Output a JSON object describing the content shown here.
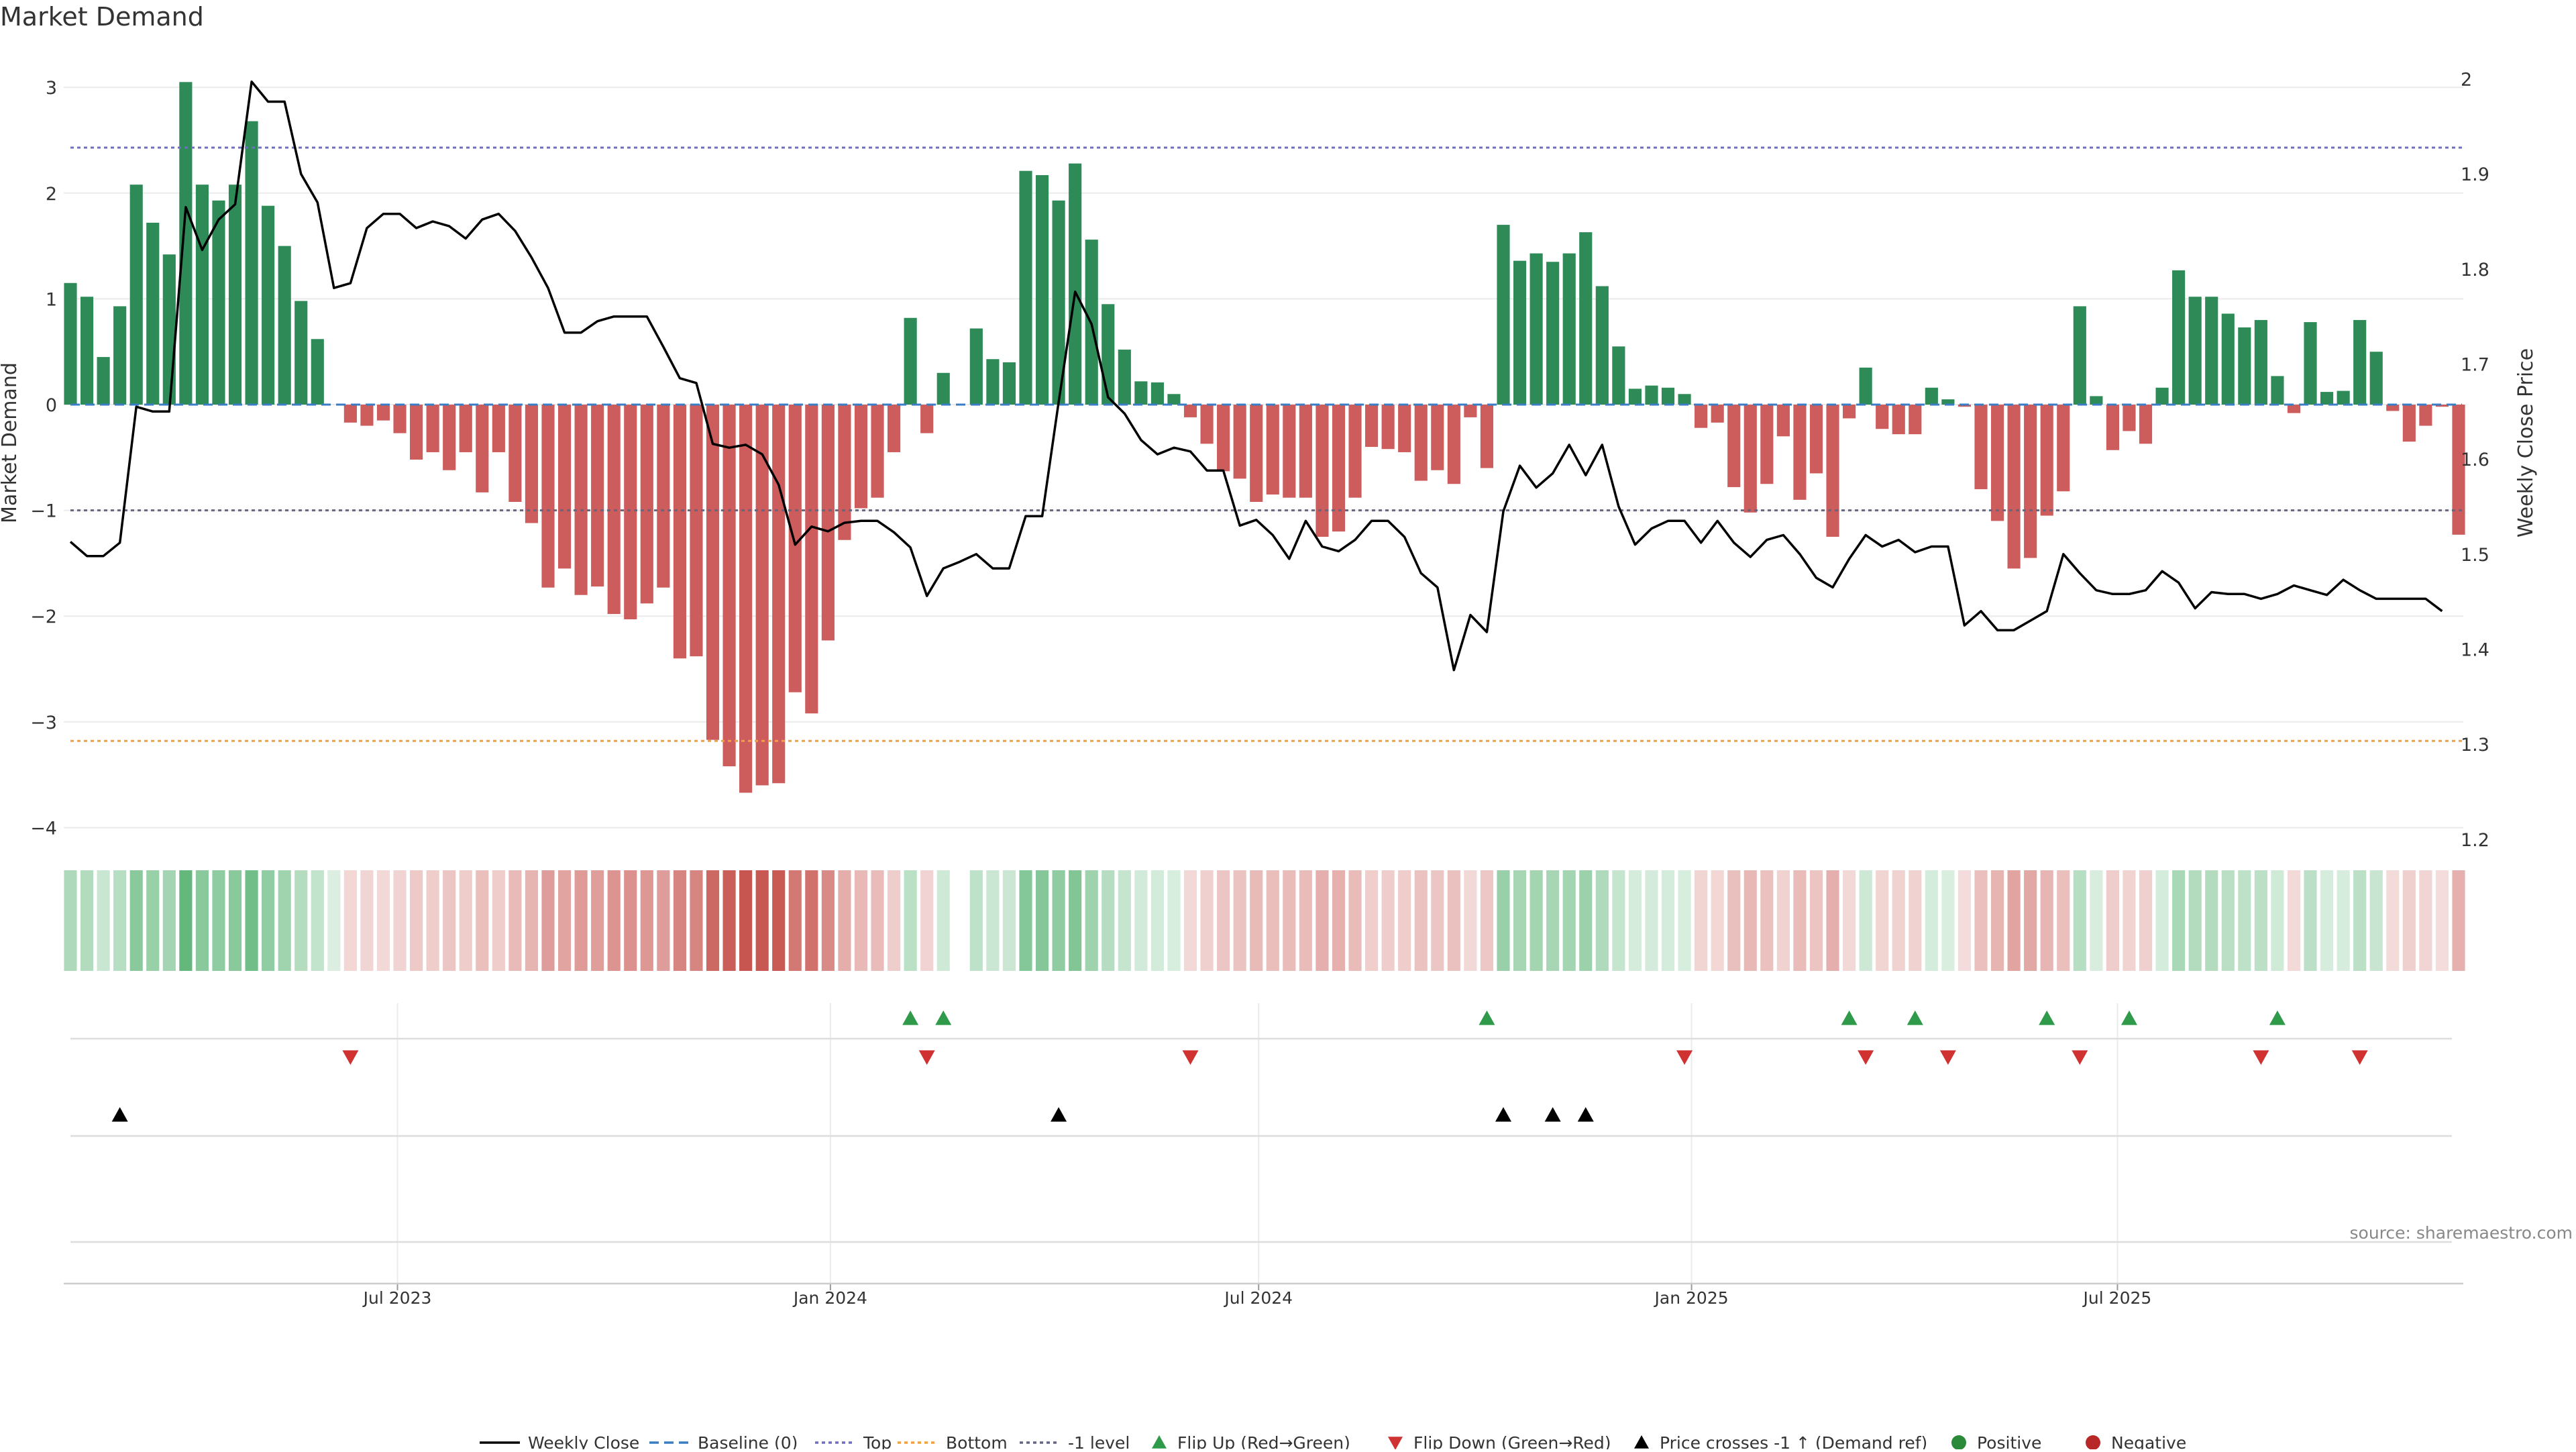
{
  "chart_data": {
    "type": "bar",
    "title": "Market Demand",
    "ylabel": "Market Demand",
    "y2label": "Weekly Close Price",
    "ylim": [
      -4.2,
      3.35
    ],
    "y2lim": [
      1.19,
      2.03
    ],
    "yticks": [
      3,
      2,
      1,
      0,
      -1,
      -2,
      -3,
      -4
    ],
    "y2ticks": [
      2,
      1.9,
      1.8,
      1.7,
      1.6,
      1.5,
      1.4,
      1.3,
      1.2
    ],
    "x_start": "2023-02-12",
    "week_days": 7,
    "x_tick_labels": [
      {
        "date": "2023-07-01",
        "label": "Jul 2023"
      },
      {
        "date": "2024-01-01",
        "label": "Jan 2024"
      },
      {
        "date": "2024-07-01",
        "label": "Jul 2024"
      },
      {
        "date": "2025-01-01",
        "label": "Jan 2025"
      },
      {
        "date": "2025-07-01",
        "label": "Jul 2025"
      }
    ],
    "reference_lines": [
      {
        "name": "Baseline (0)",
        "value": 0,
        "color": "#3b7dc4"
      },
      {
        "name": "Top",
        "value": 2.43,
        "color": "#6e6ec8"
      },
      {
        "name": "Bottom",
        "value": -3.18,
        "color": "#f0a040"
      },
      {
        "name": "-1 level",
        "value": -1,
        "color": "#666680"
      }
    ],
    "demand": [
      1.15,
      1.02,
      0.45,
      0.93,
      2.08,
      1.72,
      1.42,
      3.05,
      2.08,
      1.93,
      2.08,
      2.68,
      1.88,
      1.5,
      0.98,
      0.62,
      0,
      -0.17,
      -0.2,
      -0.15,
      -0.27,
      -0.52,
      -0.45,
      -0.62,
      -0.45,
      -0.83,
      -0.45,
      -0.92,
      -1.12,
      -1.73,
      -1.55,
      -1.8,
      -1.72,
      -1.98,
      -2.03,
      -1.88,
      -1.73,
      -2.4,
      -2.38,
      -3.17,
      -3.42,
      -3.67,
      -3.6,
      -3.58,
      -2.72,
      -2.92,
      -2.23,
      -1.28,
      -0.98,
      -0.88,
      -0.45,
      0.82,
      -0.27,
      0.3,
      null,
      0.72,
      0.43,
      0.4,
      2.21,
      2.17,
      1.93,
      2.28,
      1.56,
      0.95,
      0.52,
      0.22,
      0.21,
      0.1,
      -0.12,
      -0.37,
      -0.63,
      -0.7,
      -0.92,
      -0.85,
      -0.88,
      -0.88,
      -1.25,
      -1.2,
      -0.88,
      -0.4,
      -0.42,
      -0.45,
      -0.72,
      -0.62,
      -0.75,
      -0.12,
      -0.6,
      1.7,
      1.36,
      1.43,
      1.35,
      1.43,
      1.63,
      1.12,
      0.55,
      0.15,
      0.18,
      0.16,
      0.1,
      -0.22,
      -0.17,
      -0.78,
      -1.02,
      -0.75,
      -0.3,
      -0.9,
      -0.65,
      -1.25,
      -0.13,
      0.35,
      -0.23,
      -0.28,
      -0.28,
      0.16,
      0.05,
      -0.02,
      -0.8,
      -1.1,
      -1.55,
      -1.45,
      -1.05,
      -0.82,
      0.93,
      0.08,
      -0.43,
      -0.25,
      -0.37,
      0.16,
      1.27,
      1.02,
      1.02,
      0.86,
      0.73,
      0.8,
      0.27,
      -0.08,
      0.78,
      0.12,
      0.13,
      0.8,
      0.5,
      -0.06,
      -0.35,
      -0.2,
      -0.02,
      -1.23
    ],
    "weekly_close": [
      1.513,
      1.498,
      1.498,
      1.512,
      1.655,
      1.65,
      1.65,
      1.865,
      1.82,
      1.852,
      1.868,
      1.997,
      1.976,
      1.976,
      1.9,
      1.87,
      1.78,
      1.785,
      1.843,
      1.858,
      1.858,
      1.843,
      1.85,
      1.845,
      1.832,
      1.852,
      1.858,
      1.84,
      1.812,
      1.78,
      1.733,
      1.733,
      1.745,
      1.75,
      1.75,
      1.75,
      1.718,
      1.685,
      1.68,
      1.616,
      1.612,
      1.615,
      1.605,
      1.573,
      1.51,
      1.529,
      1.524,
      1.533,
      1.535,
      1.535,
      1.523,
      1.507,
      1.456,
      1.485,
      1.492,
      1.5,
      1.485,
      1.485,
      1.54,
      1.54,
      1.66,
      1.776,
      1.742,
      1.665,
      1.648,
      1.62,
      1.605,
      1.612,
      1.608,
      1.588,
      1.588,
      1.53,
      1.536,
      1.52,
      1.495,
      1.535,
      1.508,
      1.503,
      1.515,
      1.535,
      1.535,
      1.518,
      1.48,
      1.465,
      1.378,
      1.436,
      1.418,
      1.545,
      1.593,
      1.57,
      1.585,
      1.615,
      1.583,
      1.615,
      1.55,
      1.51,
      1.527,
      1.535,
      1.535,
      1.512,
      1.535,
      1.512,
      1.497,
      1.515,
      1.52,
      1.5,
      1.475,
      1.465,
      1.495,
      1.52,
      1.508,
      1.515,
      1.502,
      1.508,
      1.508,
      1.425,
      1.44,
      1.42,
      1.42,
      1.43,
      1.44,
      1.5,
      1.48,
      1.462,
      1.458,
      1.458,
      1.462,
      1.482,
      1.47,
      1.443,
      1.46,
      1.458,
      1.458,
      1.453,
      1.458,
      1.467,
      1.462,
      1.457,
      1.473,
      1.462,
      1.453,
      1.453,
      1.453,
      1.453,
      1.44
    ],
    "flip_up": [
      51,
      53,
      86,
      108,
      112,
      120,
      125,
      134
    ],
    "flip_down": [
      17,
      52,
      68,
      98,
      109,
      114,
      122,
      133,
      139
    ],
    "price_cross": [
      3,
      60,
      87,
      90,
      92
    ],
    "source": "source: sharemaestro.com",
    "legend": [
      {
        "label": "Weekly Close",
        "kind": "line",
        "color": "#000000"
      },
      {
        "label": "Baseline (0)",
        "kind": "dash",
        "color": "#3b7dc4"
      },
      {
        "label": "Top",
        "kind": "dot",
        "color": "#6e6ec8"
      },
      {
        "label": "Bottom",
        "kind": "dot",
        "color": "#f0a040"
      },
      {
        "label": "-1 level",
        "kind": "dot",
        "color": "#666680"
      },
      {
        "label": "Flip Up (Red→Green)",
        "kind": "tri-up",
        "color": "#2e9a4a"
      },
      {
        "label": "Flip Down (Green→Red)",
        "kind": "tri-down",
        "color": "#d03232"
      },
      {
        "label": "Price crosses -1 ↑ (Demand ref)",
        "kind": "tri-up",
        "color": "#000000"
      },
      {
        "label": "Positive",
        "kind": "circle",
        "color": "#2a8a3a"
      },
      {
        "label": "Negative",
        "kind": "circle",
        "color": "#b82828"
      }
    ],
    "colors": {
      "positive": "#2e8b57",
      "negative": "#cd5c5c",
      "strip_positive": "#36a356",
      "strip_negative": "#c0423b",
      "grid": "#ebebeb",
      "axis": "#cccccc",
      "text": "#333333"
    }
  }
}
